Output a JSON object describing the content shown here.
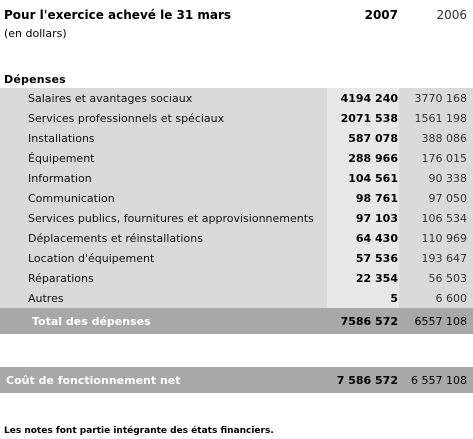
{
  "header": {
    "title": "Pour l'exercice achevé le 31 mars",
    "subtitle": "(en dollars)",
    "year_current": "2007",
    "year_previous": "2006"
  },
  "section_title": "Dépenses",
  "rows": [
    {
      "label": "Salaires et avantages sociaux",
      "current": "4194 240",
      "previous": "3770 168"
    },
    {
      "label": "Services professionnels et spéciaux",
      "current": "2071 538",
      "previous": "1561 198"
    },
    {
      "label": "Installations",
      "current": "587 078",
      "previous": "388 086"
    },
    {
      "label": "Équipement",
      "current": "288 966",
      "previous": "176 015"
    },
    {
      "label": "Information",
      "current": "104 561",
      "previous": "90 338"
    },
    {
      "label": "Communication",
      "current": "98 761",
      "previous": "97 050"
    },
    {
      "label": "Services publics, fournitures et approvisionnements",
      "current": "97 103",
      "previous": "106 534"
    },
    {
      "label": "Déplacements et réinstallations",
      "current": "64 430",
      "previous": "110 969"
    },
    {
      "label": "Location d'équipement",
      "current": "57 536",
      "previous": "193 647"
    },
    {
      "label": "Réparations",
      "current": "22 354",
      "previous": "56 503"
    },
    {
      "label": "Autres",
      "current": "5",
      "previous": "6 600"
    }
  ],
  "total": {
    "label": "Total des dépenses",
    "current": "7586 572",
    "previous": "6557 108"
  },
  "net_cost": {
    "label": "Coût de fonctionnement net",
    "current": "7 586 572",
    "previous": "6 557 108"
  },
  "footnote": "Les notes font partie intégrante des états financiers."
}
